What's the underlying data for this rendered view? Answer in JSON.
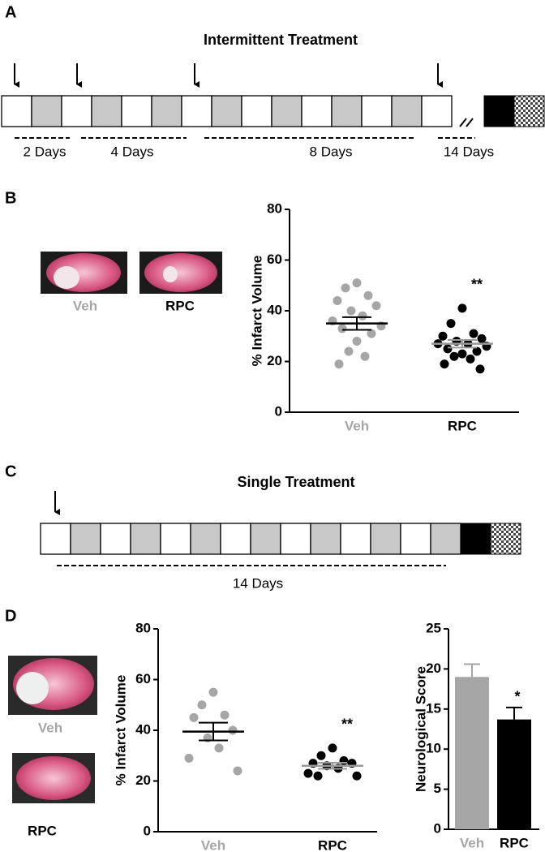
{
  "panels": {
    "a": {
      "label": "A",
      "title": "Intermittent Treatment",
      "intervals": [
        "2 Days",
        "4 Days",
        "8 Days",
        "14 Days"
      ]
    },
    "b": {
      "label": "B",
      "images": [
        "Veh",
        "RPC"
      ]
    },
    "c": {
      "label": "C",
      "title": "Single Treatment",
      "intervals": [
        "14 Days"
      ]
    },
    "d": {
      "label": "D",
      "images": [
        "Veh",
        "RPC"
      ]
    }
  },
  "chart_data": [
    {
      "type": "scatter",
      "ylabel": "% Infarct Volume",
      "categories": [
        "Veh",
        "RPC"
      ],
      "colors": [
        "#a6a6a6",
        "#000000"
      ],
      "groups": [
        {
          "values": [
            51,
            49,
            46,
            44,
            42,
            40,
            38,
            36,
            34,
            33,
            31,
            28,
            24,
            22,
            19
          ],
          "mean": 35,
          "sem": 2.5
        },
        {
          "values": [
            41,
            35,
            31,
            30,
            29,
            28,
            27,
            27,
            26,
            25,
            24,
            23,
            22,
            21,
            19,
            17
          ],
          "mean": 27,
          "sem": 1.5,
          "significance": "**"
        }
      ],
      "ylim": [
        0,
        80
      ],
      "yticks": [
        0,
        20,
        40,
        60,
        80
      ]
    },
    {
      "type": "scatter",
      "ylabel": "% Infarct Volume",
      "categories": [
        "Veh",
        "RPC"
      ],
      "colors": [
        "#a6a6a6",
        "#000000"
      ],
      "groups": [
        {
          "values": [
            55,
            50,
            46,
            45,
            40,
            37,
            33,
            29,
            24
          ],
          "mean": 39.5,
          "sem": 3.5
        },
        {
          "values": [
            33,
            30,
            28,
            27,
            27,
            26,
            25,
            23,
            22,
            22
          ],
          "mean": 26,
          "sem": 1.2,
          "significance": "**"
        }
      ],
      "ylim": [
        0,
        80
      ],
      "yticks": [
        0,
        20,
        40,
        60,
        80
      ]
    },
    {
      "type": "bar",
      "ylabel": "Neurological Score",
      "categories": [
        "Veh",
        "RPC"
      ],
      "colors": [
        "#a6a6a6",
        "#000000"
      ],
      "values": [
        19,
        13.7
      ],
      "errors": [
        1.6,
        1.5
      ],
      "significance": [
        null,
        "*"
      ],
      "ylim": [
        0,
        25
      ],
      "yticks": [
        0,
        5,
        10,
        15,
        20,
        25
      ]
    }
  ]
}
